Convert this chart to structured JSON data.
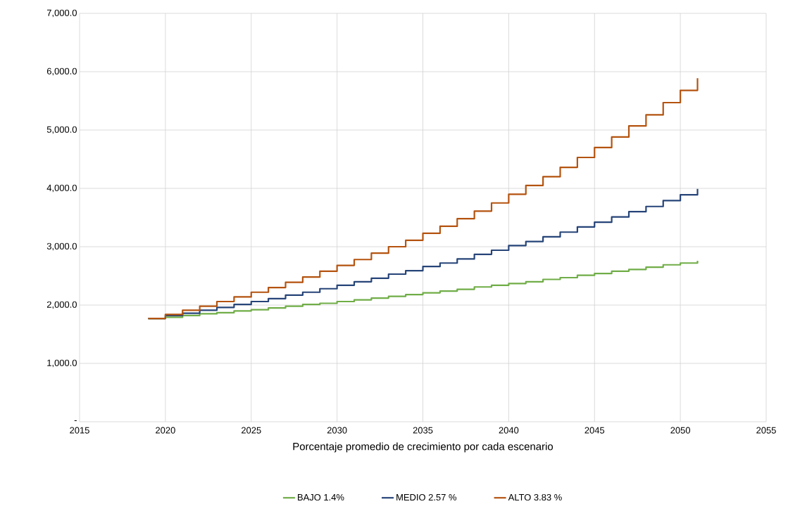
{
  "chart_data": {
    "type": "step",
    "xlabel": "Porcentaje promedio de crecimiento por cada escenario",
    "x": [
      2019,
      2020,
      2021,
      2022,
      2023,
      2024,
      2025,
      2026,
      2027,
      2028,
      2029,
      2030,
      2031,
      2032,
      2033,
      2034,
      2035,
      2036,
      2037,
      2038,
      2039,
      2040,
      2041,
      2042,
      2043,
      2044,
      2045,
      2046,
      2047,
      2048,
      2049,
      2050,
      2051
    ],
    "series": [
      {
        "name": "BAJO 1.4%",
        "color": "#70ad47",
        "values": [
          1770,
          1790,
          1820,
          1850,
          1870,
          1900,
          1920,
          1950,
          1980,
          2010,
          2030,
          2060,
          2090,
          2120,
          2150,
          2180,
          2210,
          2240,
          2270,
          2310,
          2340,
          2370,
          2400,
          2440,
          2470,
          2510,
          2540,
          2580,
          2610,
          2650,
          2690,
          2720,
          2760
        ]
      },
      {
        "name": "MEDIO 2.57 %",
        "color": "#264478",
        "values": [
          1770,
          1820,
          1860,
          1910,
          1960,
          2010,
          2060,
          2110,
          2170,
          2220,
          2280,
          2340,
          2400,
          2460,
          2530,
          2590,
          2660,
          2720,
          2790,
          2870,
          2940,
          3020,
          3090,
          3170,
          3250,
          3340,
          3420,
          3510,
          3600,
          3690,
          3790,
          3890,
          3990
        ]
      },
      {
        "name": "ALTO 3.83 %",
        "color": "#b4530f",
        "values": [
          1770,
          1840,
          1910,
          1980,
          2060,
          2140,
          2220,
          2300,
          2390,
          2480,
          2580,
          2680,
          2780,
          2890,
          3000,
          3110,
          3230,
          3350,
          3480,
          3610,
          3750,
          3900,
          4050,
          4200,
          4360,
          4530,
          4700,
          4880,
          5070,
          5260,
          5470,
          5680,
          5890
        ]
      }
    ],
    "xlim": [
      2015,
      2055
    ],
    "xticks": [
      2015,
      2020,
      2025,
      2030,
      2035,
      2040,
      2045,
      2050,
      2055
    ],
    "ylim": [
      0,
      7000
    ],
    "yticks": [
      {
        "value": 0,
        "label": "-"
      },
      {
        "value": 1000,
        "label": "1,000.0"
      },
      {
        "value": 2000,
        "label": "2,000.0"
      },
      {
        "value": 3000,
        "label": "3,000.0"
      },
      {
        "value": 4000,
        "label": "4,000.0"
      },
      {
        "value": 5000,
        "label": "5,000.0"
      },
      {
        "value": 6000,
        "label": "6,000.0"
      },
      {
        "value": 7000,
        "label": "7,000.0"
      }
    ],
    "grid": true,
    "legend": "bottom",
    "marker": "none",
    "line_style": "solid"
  }
}
